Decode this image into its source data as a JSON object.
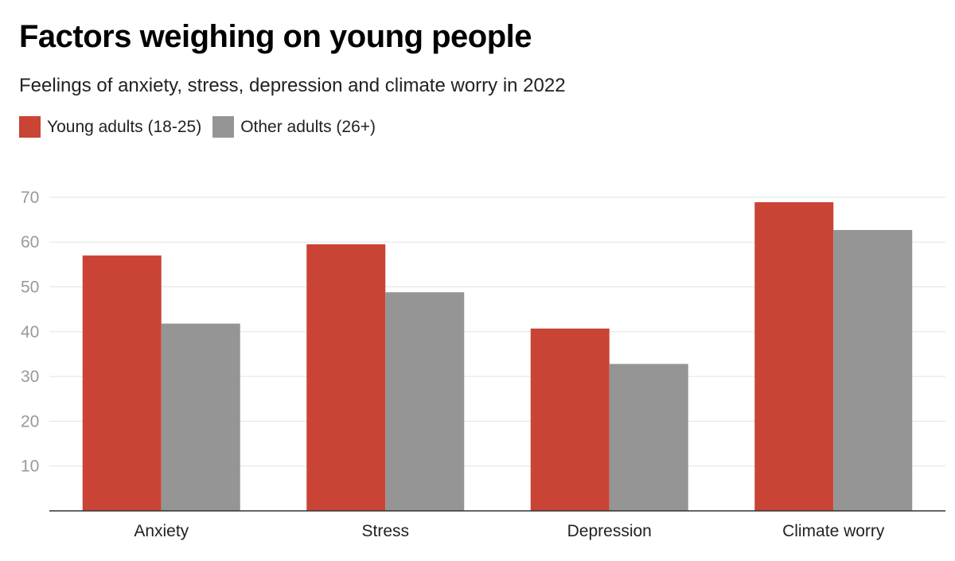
{
  "chart_data": {
    "type": "bar",
    "title": "Factors weighing on young people",
    "subtitle": "Feelings of anxiety, stress, depression and climate worry in 2022",
    "categories": [
      "Anxiety",
      "Stress",
      "Depression",
      "Climate worry"
    ],
    "series": [
      {
        "name": "Young adults (18-25)",
        "color": "#c94435",
        "values": [
          57,
          59.5,
          40.7,
          68.9
        ]
      },
      {
        "name": "Other adults (26+)",
        "color": "#959595",
        "values": [
          41.8,
          48.8,
          32.8,
          62.7
        ]
      }
    ],
    "yticks": [
      10,
      20,
      30,
      40,
      50,
      60,
      70
    ],
    "ylim": [
      0,
      72
    ],
    "xlabel": "",
    "ylabel": "",
    "grid": true,
    "legend_position": "top-left"
  }
}
